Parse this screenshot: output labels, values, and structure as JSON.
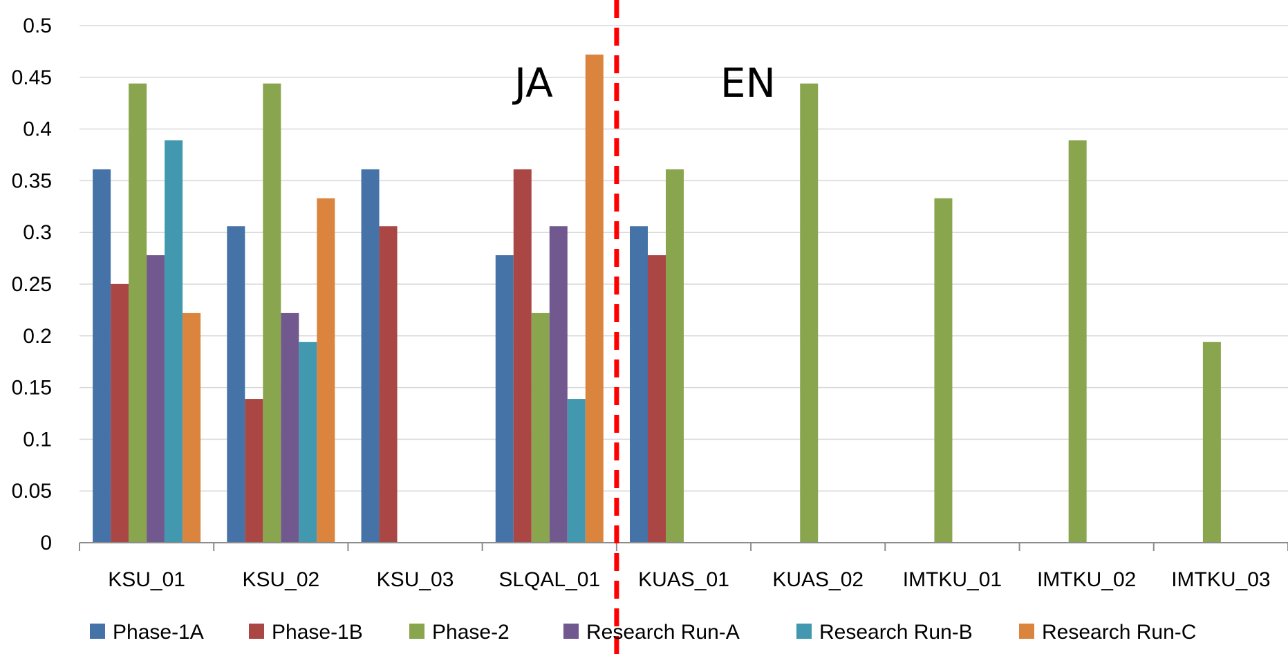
{
  "chart_data": {
    "type": "bar",
    "title": "",
    "xlabel": "",
    "ylabel": "",
    "ylim": [
      0,
      0.5
    ],
    "y_ticks": [
      "0",
      "0.05",
      "0.1",
      "0.15",
      "0.2",
      "0.25",
      "0.3",
      "0.35",
      "0.4",
      "0.45",
      "0.5"
    ],
    "grid": true,
    "legend_position": "bottom",
    "categories": [
      "KSU_01",
      "KSU_02",
      "KSU_03",
      "SLQAL_01",
      "KUAS_01",
      "KUAS_02",
      "IMTKU_01",
      "IMTKU_02",
      "IMTKU_03"
    ],
    "series": [
      {
        "name": "Phase-1A",
        "color": "#4572A7",
        "values": [
          0.361,
          0.306,
          0.361,
          0.278,
          0.306,
          null,
          null,
          null,
          null
        ]
      },
      {
        "name": "Phase-1B",
        "color": "#AA4643",
        "values": [
          0.25,
          0.139,
          0.306,
          0.361,
          0.278,
          null,
          null,
          null,
          null
        ]
      },
      {
        "name": "Phase-2",
        "color": "#89A54E",
        "values": [
          0.444,
          0.444,
          null,
          0.222,
          0.361,
          0.444,
          0.333,
          0.389,
          0.194
        ]
      },
      {
        "name": "Research Run-A",
        "color": "#71588F",
        "values": [
          0.278,
          0.222,
          null,
          0.306,
          null,
          null,
          null,
          null,
          null
        ]
      },
      {
        "name": "Research Run-B",
        "color": "#4198AF",
        "values": [
          0.389,
          0.194,
          null,
          0.139,
          null,
          null,
          null,
          null,
          null
        ]
      },
      {
        "name": "Research Run-C",
        "color": "#DB843D",
        "values": [
          0.222,
          0.333,
          null,
          0.472,
          null,
          null,
          null,
          null,
          null
        ]
      }
    ],
    "annotations": [
      {
        "text": "JA",
        "region": "left"
      },
      {
        "text": "EN",
        "region": "right"
      }
    ],
    "divider": {
      "after_category_index": 3,
      "color": "#FF0000",
      "style": "dashed"
    }
  }
}
